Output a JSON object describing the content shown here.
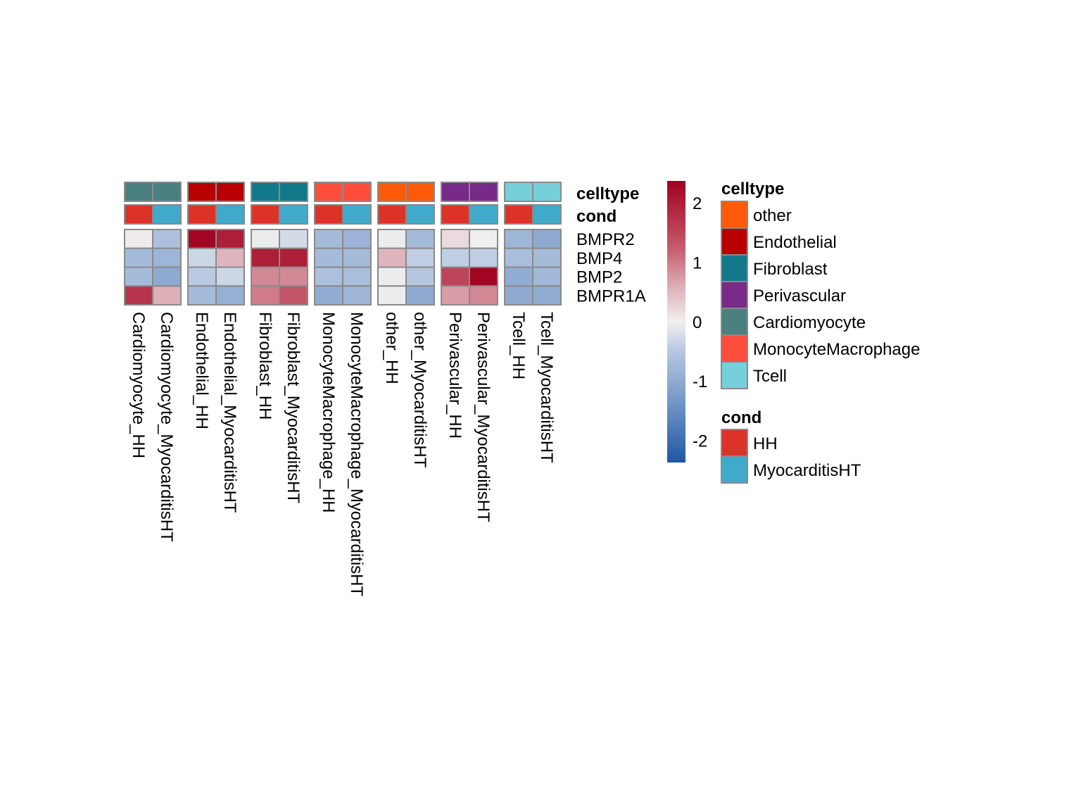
{
  "chart_data": {
    "type": "heatmap",
    "rows": [
      "BMPR2",
      "BMP4",
      "BMP2",
      "BMPR1A"
    ],
    "columns": [
      "Cardiomyocyte_HH",
      "Cardiomyocyte_MyocarditisHT",
      "Endothelial_HH",
      "Endothelial_MyocarditisHT",
      "Fibroblast_HH",
      "Fibroblast_MyocarditisHT",
      "MonocyteMacrophage_HH",
      "MonocyteMacrophage_MyocarditisHT",
      "other_HH",
      "other_MyocarditisHT",
      "Perivascular_HH",
      "Perivascular_MyocarditisHT",
      "Tcell_HH",
      "Tcell_MyocarditisHT"
    ],
    "values": [
      [
        0.05,
        -0.6,
        2.3,
        2.0,
        -0.05,
        -0.25,
        -0.7,
        -0.85,
        -0.05,
        -0.7,
        0.2,
        0.02,
        -0.8,
        -1.0
      ],
      [
        -0.7,
        -0.8,
        -0.3,
        0.55,
        2.0,
        2.0,
        -0.7,
        -0.7,
        0.55,
        -0.4,
        -0.4,
        -0.4,
        -0.65,
        -0.7
      ],
      [
        -0.7,
        -1.0,
        -0.45,
        -0.3,
        0.9,
        0.9,
        -0.6,
        -0.65,
        -0.05,
        -0.5,
        1.5,
        2.3,
        -0.95,
        -0.75
      ],
      [
        1.7,
        0.6,
        -0.7,
        -0.9,
        1.0,
        1.3,
        -0.95,
        -0.8,
        -0.05,
        -1.0,
        0.75,
        0.9,
        -1.0,
        -0.95
      ]
    ],
    "column_annotations": {
      "celltype": [
        "Cardiomyocyte",
        "Cardiomyocyte",
        "Endothelial",
        "Endothelial",
        "Fibroblast",
        "Fibroblast",
        "MonocyteMacrophage",
        "MonocyteMacrophage",
        "other",
        "other",
        "Perivascular",
        "Perivascular",
        "Tcell",
        "Tcell"
      ],
      "cond": [
        "HH",
        "MyocarditisHT",
        "HH",
        "MyocarditisHT",
        "HH",
        "MyocarditisHT",
        "HH",
        "MyocarditisHT",
        "HH",
        "MyocarditisHT",
        "HH",
        "MyocarditisHT",
        "HH",
        "MyocarditisHT"
      ]
    },
    "annotation_labels": [
      "celltype",
      "cond"
    ],
    "color_scale": {
      "min": -2.36,
      "max": 2.38,
      "ticks": [
        2,
        1,
        0,
        -1,
        -2
      ],
      "low_color": "#1F57A4",
      "mid_color": "#F1F0F0",
      "high_color": "#A0001E"
    },
    "legend": {
      "celltype": {
        "title": "celltype",
        "items": [
          {
            "label": "other",
            "color": "#FF5A0A"
          },
          {
            "label": "Endothelial",
            "color": "#B80000"
          },
          {
            "label": "Fibroblast",
            "color": "#12798A"
          },
          {
            "label": "Perivascular",
            "color": "#772A87"
          },
          {
            "label": "Cardiomyocyte",
            "color": "#4A8080"
          },
          {
            "label": "MonocyteMacrophage",
            "color": "#FF4D3C"
          },
          {
            "label": "Tcell",
            "color": "#76D0DA"
          }
        ]
      },
      "cond": {
        "title": "cond",
        "items": [
          {
            "label": "HH",
            "color": "#DC3328"
          },
          {
            "label": "MyocarditisHT",
            "color": "#40AACB"
          }
        ]
      }
    },
    "column_gaps_after": [
      2,
      4,
      6,
      8,
      10,
      12
    ]
  }
}
